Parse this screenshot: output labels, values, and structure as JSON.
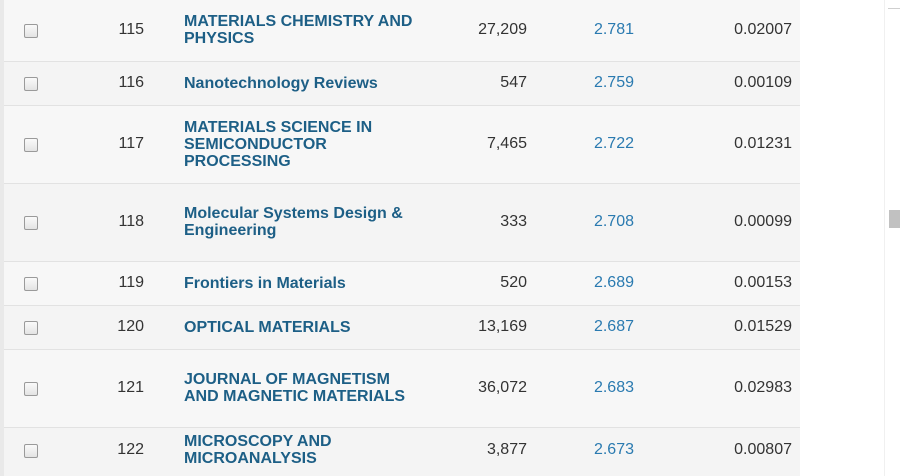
{
  "journal_table": {
    "rows": [
      {
        "rank": "115",
        "title": "MATERIALS CHEMISTRY AND PHYSICS",
        "total_cites": "27,209",
        "jif": "2.781",
        "eigenfactor": "0.02007"
      },
      {
        "rank": "116",
        "title": "Nanotechnology Reviews",
        "total_cites": "547",
        "jif": "2.759",
        "eigenfactor": "0.00109"
      },
      {
        "rank": "117",
        "title": "MATERIALS SCIENCE IN SEMICONDUCTOR PROCESSING",
        "total_cites": "7,465",
        "jif": "2.722",
        "eigenfactor": "0.01231"
      },
      {
        "rank": "118",
        "title": "Molecular Systems Design & Engineering",
        "total_cites": "333",
        "jif": "2.708",
        "eigenfactor": "0.00099"
      },
      {
        "rank": "119",
        "title": "Frontiers in Materials",
        "total_cites": "520",
        "jif": "2.689",
        "eigenfactor": "0.00153"
      },
      {
        "rank": "120",
        "title": "OPTICAL MATERIALS",
        "total_cites": "13,169",
        "jif": "2.687",
        "eigenfactor": "0.01529"
      },
      {
        "rank": "121",
        "title": "JOURNAL OF MAGNETISM AND MAGNETIC MATERIALS",
        "total_cites": "36,072",
        "jif": "2.683",
        "eigenfactor": "0.02983"
      },
      {
        "rank": "122",
        "title": "MICROSCOPY AND MICROANALYSIS",
        "total_cites": "3,877",
        "jif": "2.673",
        "eigenfactor": "0.00807"
      }
    ]
  },
  "colors": {
    "title_link": "#1d5f86",
    "jif_link": "#2a7ab0",
    "row_background": "#f7f7f7",
    "row_border": "#e2e2e2",
    "text": "#333333"
  }
}
